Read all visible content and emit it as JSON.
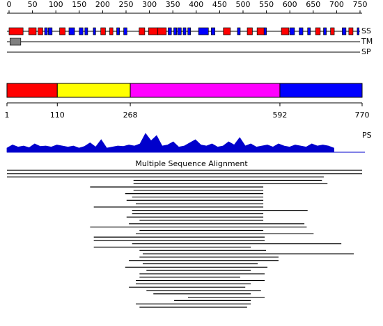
{
  "chart_data": {
    "type": "protein-map",
    "axis": {
      "lim": [
        0,
        750
      ],
      "ticks": [
        0,
        50,
        100,
        150,
        200,
        250,
        300,
        350,
        400,
        450,
        500,
        550,
        600,
        650,
        700,
        750
      ]
    },
    "tracks": [
      "SS",
      "TM",
      "SP"
    ],
    "ss": {
      "helix_color": "#ff0000",
      "strand_color": "#0000ff",
      "helices": [
        [
          0,
          30
        ],
        [
          42,
          58
        ],
        [
          62,
          72
        ],
        [
          108,
          120
        ],
        [
          196,
          206
        ],
        [
          215,
          222
        ],
        [
          278,
          290
        ],
        [
          298,
          318
        ],
        [
          318,
          336
        ],
        [
          458,
          473
        ],
        [
          509,
          520
        ],
        [
          530,
          545
        ],
        [
          582,
          598
        ],
        [
          655,
          665
        ],
        [
          687,
          695
        ],
        [
          726,
          735
        ]
      ],
      "strands": [
        [
          76,
          82
        ],
        [
          84,
          92
        ],
        [
          128,
          140
        ],
        [
          150,
          158
        ],
        [
          162,
          168
        ],
        [
          180,
          185
        ],
        [
          230,
          236
        ],
        [
          245,
          252
        ],
        [
          340,
          347
        ],
        [
          352,
          358
        ],
        [
          360,
          368
        ],
        [
          372,
          378
        ],
        [
          382,
          388
        ],
        [
          405,
          426
        ],
        [
          432,
          440
        ],
        [
          488,
          494
        ],
        [
          545,
          550
        ],
        [
          600,
          610
        ],
        [
          620,
          628
        ],
        [
          638,
          644
        ],
        [
          672,
          678
        ],
        [
          712,
          720
        ],
        [
          744,
          748
        ]
      ]
    },
    "tm": {
      "color": "#808080",
      "segments": [
        [
          2,
          25
        ]
      ]
    },
    "domains": {
      "boundaries": [
        1,
        110,
        268,
        592,
        770
      ],
      "colors": [
        "#ff0000",
        "#ffff00",
        "#ff00ff",
        "#0000ff"
      ]
    },
    "ps": {
      "label": "PS",
      "color": "#0000cc",
      "ylim": [
        0,
        1
      ],
      "x": [
        1,
        13,
        25,
        37,
        49,
        61,
        73,
        85,
        97,
        109,
        121,
        133,
        145,
        157,
        169,
        181,
        193,
        205,
        217,
        229,
        241,
        253,
        265,
        277,
        289,
        301,
        313,
        325,
        337,
        349,
        361,
        373,
        385,
        397,
        409,
        421,
        433,
        445,
        457,
        469,
        481,
        493,
        505,
        517,
        529,
        541,
        553,
        565,
        577,
        589,
        601,
        613,
        625,
        637,
        649,
        661,
        673,
        685,
        697,
        709
      ],
      "values": [
        0.2,
        0.35,
        0.25,
        0.3,
        0.22,
        0.4,
        0.28,
        0.3,
        0.25,
        0.35,
        0.3,
        0.25,
        0.3,
        0.2,
        0.28,
        0.45,
        0.25,
        0.6,
        0.2,
        0.25,
        0.3,
        0.28,
        0.35,
        0.3,
        0.4,
        0.9,
        0.55,
        0.8,
        0.3,
        0.35,
        0.5,
        0.25,
        0.3,
        0.45,
        0.6,
        0.35,
        0.3,
        0.4,
        0.25,
        0.3,
        0.5,
        0.35,
        0.7,
        0.3,
        0.4,
        0.25,
        0.3,
        0.35,
        0.25,
        0.4,
        0.3,
        0.25,
        0.35,
        0.3,
        0.25,
        0.4,
        0.3,
        0.35,
        0.3,
        0.2
      ]
    },
    "msa": {
      "title": "Multiple Sequence Alignment",
      "lim": [
        1,
        770
      ],
      "alignments": [
        [
          1,
          770
        ],
        [
          1,
          770
        ],
        [
          1,
          687
        ],
        [
          275,
          683
        ],
        [
          275,
          695
        ],
        [
          181,
          556
        ],
        [
          275,
          556
        ],
        [
          257,
          556
        ],
        [
          272,
          556
        ],
        [
          260,
          556
        ],
        [
          280,
          556
        ],
        [
          189,
          556
        ],
        [
          272,
          652
        ],
        [
          272,
          556
        ],
        [
          260,
          556
        ],
        [
          288,
          556
        ],
        [
          265,
          645
        ],
        [
          181,
          650
        ],
        [
          288,
          556
        ],
        [
          280,
          665
        ],
        [
          189,
          559
        ],
        [
          189,
          559
        ],
        [
          272,
          725
        ],
        [
          189,
          529
        ],
        [
          288,
          562
        ],
        [
          295,
          752
        ],
        [
          288,
          589
        ],
        [
          265,
          589
        ],
        [
          295,
          544
        ],
        [
          257,
          565
        ],
        [
          303,
          529
        ],
        [
          288,
          559
        ],
        [
          288,
          506
        ],
        [
          280,
          559
        ],
        [
          280,
          529
        ],
        [
          265,
          517
        ],
        [
          303,
          551
        ],
        [
          318,
          529
        ],
        [
          393,
          559
        ],
        [
          363,
          529
        ],
        [
          280,
          529
        ],
        [
          288,
          521
        ]
      ]
    }
  }
}
